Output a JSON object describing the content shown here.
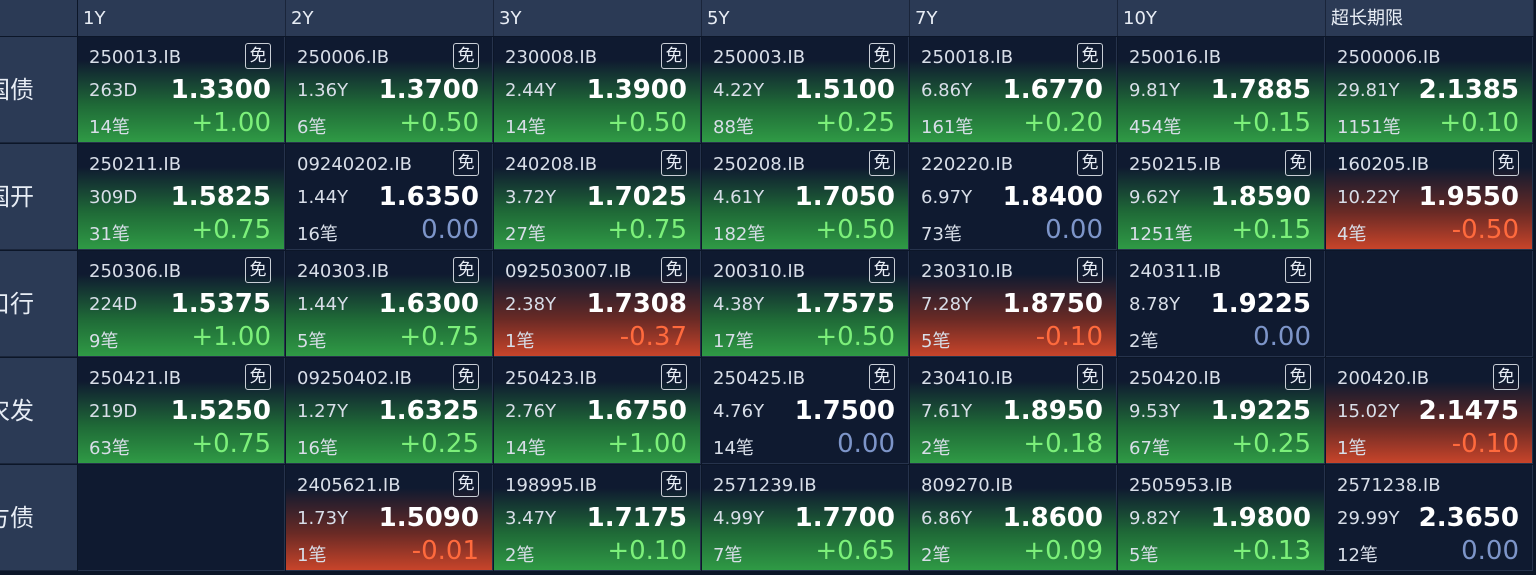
{
  "header": {
    "columns": [
      "1Y",
      "2Y",
      "3Y",
      "5Y",
      "7Y",
      "10Y",
      "超长期限"
    ]
  },
  "rows": [
    {
      "label": "国债",
      "cells": [
        {
          "code": "250013.IB",
          "badge": "免",
          "tenor": "263D",
          "yield": "1.3300",
          "count": "14笔",
          "change": "+1.00"
        },
        {
          "code": "250006.IB",
          "badge": "免",
          "tenor": "1.36Y",
          "yield": "1.3700",
          "count": "6笔",
          "change": "+0.50"
        },
        {
          "code": "230008.IB",
          "badge": "免",
          "tenor": "2.44Y",
          "yield": "1.3900",
          "count": "14笔",
          "change": "+0.50"
        },
        {
          "code": "250003.IB",
          "badge": "免",
          "tenor": "4.22Y",
          "yield": "1.5100",
          "count": "88笔",
          "change": "+0.25"
        },
        {
          "code": "250018.IB",
          "badge": "免",
          "tenor": "6.86Y",
          "yield": "1.6770",
          "count": "161笔",
          "change": "+0.20"
        },
        {
          "code": "250016.IB",
          "tenor": "9.81Y",
          "yield": "1.7885",
          "count": "454笔",
          "change": "+0.15"
        },
        {
          "code": "2500006.IB",
          "tenor": "29.81Y",
          "yield": "2.1385",
          "count": "1151笔",
          "change": "+0.10"
        }
      ]
    },
    {
      "label": "国开",
      "cells": [
        {
          "code": "250211.IB",
          "tenor": "309D",
          "yield": "1.5825",
          "count": "31笔",
          "change": "+0.75"
        },
        {
          "code": "09240202.IB",
          "badge": "免",
          "tenor": "1.44Y",
          "yield": "1.6350",
          "count": "16笔",
          "change": "0.00"
        },
        {
          "code": "240208.IB",
          "badge": "免",
          "tenor": "3.72Y",
          "yield": "1.7025",
          "count": "27笔",
          "change": "+0.75"
        },
        {
          "code": "250208.IB",
          "badge": "免",
          "tenor": "4.61Y",
          "yield": "1.7050",
          "count": "182笔",
          "change": "+0.50"
        },
        {
          "code": "220220.IB",
          "badge": "免",
          "tenor": "6.97Y",
          "yield": "1.8400",
          "count": "73笔",
          "change": "0.00"
        },
        {
          "code": "250215.IB",
          "badge": "免",
          "tenor": "9.62Y",
          "yield": "1.8590",
          "count": "1251笔",
          "change": "+0.15"
        },
        {
          "code": "160205.IB",
          "badge": "免",
          "tenor": "10.22Y",
          "yield": "1.9550",
          "count": "4笔",
          "change": "-0.50"
        }
      ]
    },
    {
      "label": "口行",
      "cells": [
        {
          "code": "250306.IB",
          "badge": "免",
          "tenor": "224D",
          "yield": "1.5375",
          "count": "9笔",
          "change": "+1.00"
        },
        {
          "code": "240303.IB",
          "badge": "免",
          "tenor": "1.44Y",
          "yield": "1.6300",
          "count": "5笔",
          "change": "+0.75"
        },
        {
          "code": "092503007.IB",
          "badge": "免",
          "tenor": "2.38Y",
          "yield": "1.7308",
          "count": "1笔",
          "change": "-0.37"
        },
        {
          "code": "200310.IB",
          "badge": "免",
          "tenor": "4.38Y",
          "yield": "1.7575",
          "count": "17笔",
          "change": "+0.50"
        },
        {
          "code": "230310.IB",
          "badge": "免",
          "tenor": "7.28Y",
          "yield": "1.8750",
          "count": "5笔",
          "change": "-0.10"
        },
        {
          "code": "240311.IB",
          "badge": "免",
          "tenor": "8.78Y",
          "yield": "1.9225",
          "count": "2笔",
          "change": "0.00"
        },
        null
      ]
    },
    {
      "label": "农发",
      "cells": [
        {
          "code": "250421.IB",
          "badge": "免",
          "tenor": "219D",
          "yield": "1.5250",
          "count": "63笔",
          "change": "+0.75"
        },
        {
          "code": "09250402.IB",
          "badge": "免",
          "tenor": "1.27Y",
          "yield": "1.6325",
          "count": "16笔",
          "change": "+0.25"
        },
        {
          "code": "250423.IB",
          "badge": "免",
          "tenor": "2.76Y",
          "yield": "1.6750",
          "count": "14笔",
          "change": "+1.00"
        },
        {
          "code": "250425.IB",
          "badge": "免",
          "tenor": "4.76Y",
          "yield": "1.7500",
          "count": "14笔",
          "change": "0.00"
        },
        {
          "code": "230410.IB",
          "badge": "免",
          "tenor": "7.61Y",
          "yield": "1.8950",
          "count": "2笔",
          "change": "+0.18"
        },
        {
          "code": "250420.IB",
          "badge": "免",
          "tenor": "9.53Y",
          "yield": "1.9225",
          "count": "67笔",
          "change": "+0.25"
        },
        {
          "code": "200420.IB",
          "badge": "免",
          "tenor": "15.02Y",
          "yield": "2.1475",
          "count": "1笔",
          "change": "-0.10"
        }
      ]
    },
    {
      "label": "地方债",
      "cells": [
        null,
        {
          "code": "2405621.IB",
          "badge": "免",
          "tenor": "1.73Y",
          "yield": "1.5090",
          "count": "1笔",
          "change": "-0.01"
        },
        {
          "code": "198995.IB",
          "badge": "免",
          "tenor": "3.47Y",
          "yield": "1.7175",
          "count": "2笔",
          "change": "+0.10"
        },
        {
          "code": "2571239.IB",
          "tenor": "4.99Y",
          "yield": "1.7700",
          "count": "7笔",
          "change": "+0.65"
        },
        {
          "code": "809270.IB",
          "tenor": "6.86Y",
          "yield": "1.8600",
          "count": "2笔",
          "change": "+0.09"
        },
        {
          "code": "2505953.IB",
          "tenor": "9.82Y",
          "yield": "1.9800",
          "count": "5笔",
          "change": "+0.13"
        },
        {
          "code": "2571238.IB",
          "tenor": "29.99Y",
          "yield": "2.3650",
          "count": "12笔",
          "change": "0.00"
        }
      ]
    }
  ]
}
